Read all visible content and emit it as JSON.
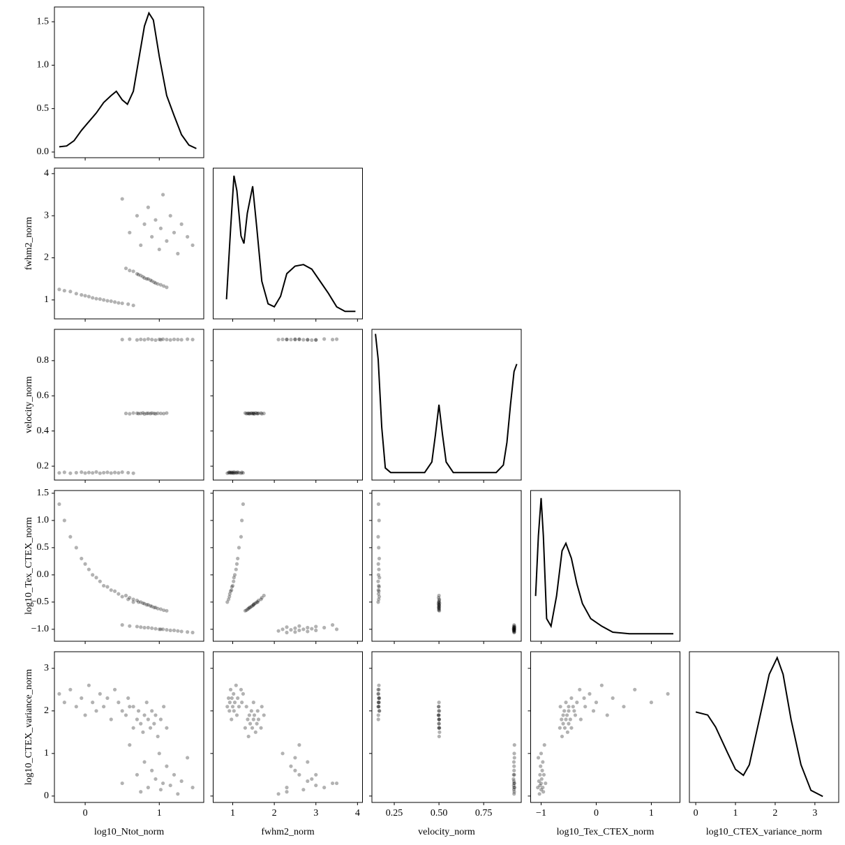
{
  "chart_data": {
    "type": "corner",
    "color": "#000000",
    "variables": [
      {
        "name": "log10_Ntot_norm",
        "xlim": [
          -0.415,
          1.6
        ],
        "xticks": [
          0,
          1
        ],
        "values": [
          -0.35,
          -0.28,
          -0.2,
          -0.12,
          -0.05,
          0.0,
          0.05,
          0.1,
          0.15,
          0.2,
          0.25,
          0.3,
          0.35,
          0.4,
          0.45,
          0.5,
          0.58,
          0.65,
          0.55,
          0.6,
          0.65,
          0.7,
          0.72,
          0.75,
          0.78,
          0.8,
          0.83,
          0.85,
          0.88,
          0.9,
          0.93,
          0.95,
          0.98,
          1.02,
          1.06,
          1.1,
          0.5,
          0.6,
          0.7,
          0.75,
          0.8,
          0.85,
          0.9,
          0.95,
          1.0,
          1.02,
          1.05,
          1.1,
          1.15,
          1.2,
          1.25,
          1.3,
          1.38,
          1.45
        ],
        "kde": {
          "ylim": [
            -0.065,
            1.67
          ],
          "yticks": [
            {
              "value": 0,
              "label": "0.0"
            },
            0.5,
            {
              "value": 1,
              "label": "1.0"
            },
            1.5
          ],
          "x": [
            -0.35,
            -0.25,
            -0.15,
            -0.05,
            0.05,
            0.15,
            0.25,
            0.35,
            0.42,
            0.5,
            0.57,
            0.65,
            0.72,
            0.8,
            0.86,
            0.92,
            1.0,
            1.1,
            1.2,
            1.3,
            1.4,
            1.5
          ],
          "y": [
            0.06,
            0.07,
            0.13,
            0.25,
            0.35,
            0.45,
            0.57,
            0.65,
            0.7,
            0.6,
            0.55,
            0.7,
            1.05,
            1.45,
            1.6,
            1.52,
            1.1,
            0.65,
            0.42,
            0.2,
            0.08,
            0.04
          ]
        }
      },
      {
        "name": "fwhm2_norm",
        "xlim": [
          0.53,
          4.12
        ],
        "ylim": [
          0.55,
          4.13
        ],
        "xticks": [
          1,
          2,
          3,
          4
        ],
        "yticks": [
          1,
          2,
          3,
          4
        ],
        "values": [
          1.25,
          1.22,
          1.2,
          1.15,
          1.12,
          1.1,
          1.08,
          1.05,
          1.03,
          1.02,
          1.0,
          0.98,
          0.97,
          0.95,
          0.93,
          0.92,
          0.9,
          0.87,
          1.75,
          1.7,
          1.68,
          1.62,
          1.6,
          1.58,
          1.55,
          1.52,
          1.5,
          1.5,
          1.47,
          1.45,
          1.42,
          1.4,
          1.38,
          1.36,
          1.33,
          1.3,
          3.4,
          2.6,
          3.0,
          2.3,
          2.8,
          3.2,
          2.5,
          2.9,
          2.2,
          2.7,
          3.5,
          2.4,
          3.0,
          2.6,
          2.1,
          2.8,
          2.5,
          2.3
        ],
        "kde": {
          "ylim": [
            0,
            1
          ],
          "x": [
            0.85,
            0.95,
            1.03,
            1.1,
            1.2,
            1.27,
            1.35,
            1.48,
            1.58,
            1.7,
            1.85,
            2.0,
            2.15,
            2.3,
            2.5,
            2.7,
            2.9,
            3.1,
            3.3,
            3.5,
            3.7,
            3.95
          ],
          "y": [
            0.13,
            0.6,
            0.95,
            0.85,
            0.55,
            0.5,
            0.7,
            0.88,
            0.6,
            0.25,
            0.1,
            0.08,
            0.15,
            0.3,
            0.35,
            0.36,
            0.33,
            0.25,
            0.17,
            0.08,
            0.05,
            0.05
          ]
        }
      },
      {
        "name": "velocity_norm",
        "xlim": [
          0.125,
          0.96
        ],
        "ylim": [
          0.121,
          0.978
        ],
        "xticks": [
          0.25,
          {
            "value": 0.5,
            "label": "0.50"
          },
          0.75
        ],
        "yticks": [
          0.2,
          0.4,
          0.6,
          0.8
        ],
        "values": [
          0.162,
          0.165,
          0.16,
          0.163,
          0.166,
          0.161,
          0.164,
          0.162,
          0.167,
          0.16,
          0.163,
          0.165,
          0.161,
          0.164,
          0.162,
          0.166,
          0.163,
          0.16,
          0.5,
          0.498,
          0.502,
          0.501,
          0.499,
          0.5,
          0.503,
          0.497,
          0.5,
          0.501,
          0.499,
          0.502,
          0.5,
          0.498,
          0.501,
          0.5,
          0.499,
          0.502,
          0.92,
          0.922,
          0.918,
          0.921,
          0.919,
          0.923,
          0.92,
          0.917,
          0.921,
          0.919,
          0.922,
          0.92,
          0.918,
          0.921,
          0.92,
          0.919,
          0.922,
          0.92
        ],
        "kde": {
          "ylim": [
            0,
            1
          ],
          "x": [
            0.145,
            0.16,
            0.18,
            0.2,
            0.23,
            0.3,
            0.42,
            0.46,
            0.48,
            0.5,
            0.52,
            0.54,
            0.58,
            0.7,
            0.82,
            0.86,
            0.88,
            0.9,
            0.92,
            0.935
          ],
          "y": [
            0.97,
            0.8,
            0.35,
            0.08,
            0.05,
            0.05,
            0.05,
            0.12,
            0.3,
            0.5,
            0.3,
            0.12,
            0.05,
            0.05,
            0.05,
            0.1,
            0.25,
            0.5,
            0.72,
            0.77
          ]
        }
      },
      {
        "name": "log10_Tex_CTEX_norm",
        "xlim": [
          -1.19,
          1.52
        ],
        "ylim": [
          -1.22,
          1.55
        ],
        "xticks": [
          {
            "value": -1,
            "label": "−1"
          },
          0,
          1
        ],
        "yticks": [
          {
            "value": -1,
            "label": "−1.0"
          },
          {
            "value": -0.5,
            "label": "−0.5"
          },
          {
            "value": 0,
            "label": "0.0"
          },
          0.5,
          {
            "value": 1,
            "label": "1.0"
          },
          1.5
        ],
        "values": [
          1.3,
          1.0,
          0.7,
          0.5,
          0.3,
          0.2,
          0.1,
          0.0,
          -0.05,
          -0.12,
          -0.2,
          -0.22,
          -0.28,
          -0.3,
          -0.35,
          -0.4,
          -0.45,
          -0.5,
          -0.38,
          -0.42,
          -0.45,
          -0.47,
          -0.5,
          -0.5,
          -0.52,
          -0.53,
          -0.55,
          -0.55,
          -0.57,
          -0.58,
          -0.6,
          -0.6,
          -0.62,
          -0.63,
          -0.65,
          -0.66,
          -0.92,
          -0.94,
          -0.95,
          -0.96,
          -0.97,
          -0.97,
          -0.98,
          -0.99,
          -1.0,
          -1.0,
          -1.0,
          -1.01,
          -1.02,
          -1.02,
          -1.03,
          -1.04,
          -1.05,
          -1.06
        ],
        "kde": {
          "ylim": [
            0,
            1
          ],
          "x": [
            -1.1,
            -1.05,
            -1.0,
            -0.96,
            -0.9,
            -0.82,
            -0.72,
            -0.62,
            -0.55,
            -0.45,
            -0.35,
            -0.25,
            -0.1,
            0.1,
            0.3,
            0.6,
            1.0,
            1.4
          ],
          "y": [
            0.3,
            0.7,
            0.95,
            0.7,
            0.15,
            0.1,
            0.3,
            0.6,
            0.65,
            0.55,
            0.38,
            0.25,
            0.15,
            0.1,
            0.06,
            0.05,
            0.05,
            0.05
          ]
        }
      },
      {
        "name": "log10_CTEX_variance_norm",
        "xlim": [
          -0.16,
          3.6
        ],
        "ylim": [
          -0.15,
          3.39
        ],
        "xticks": [
          0,
          1,
          2,
          3
        ],
        "yticks": [
          0,
          1,
          2,
          3
        ],
        "values": [
          2.4,
          2.2,
          2.5,
          2.1,
          2.3,
          1.9,
          2.6,
          2.2,
          2.0,
          2.4,
          2.1,
          2.3,
          1.8,
          2.5,
          2.2,
          2.0,
          2.3,
          2.1,
          1.9,
          2.1,
          1.6,
          1.8,
          2.0,
          1.7,
          1.5,
          1.9,
          2.2,
          1.8,
          1.6,
          2.0,
          1.7,
          1.9,
          1.4,
          1.8,
          2.1,
          1.6,
          0.3,
          1.2,
          0.5,
          0.1,
          0.8,
          0.2,
          0.6,
          0.4,
          1.0,
          0.15,
          0.3,
          0.7,
          0.25,
          0.5,
          0.05,
          0.35,
          0.9,
          0.2
        ],
        "kde": {
          "ylim": [
            0,
            1
          ],
          "x": [
            0,
            0.3,
            0.5,
            0.8,
            1.0,
            1.2,
            1.35,
            1.6,
            1.85,
            2.05,
            2.2,
            2.4,
            2.65,
            2.9,
            3.2
          ],
          "y": [
            0.6,
            0.58,
            0.5,
            0.33,
            0.22,
            0.18,
            0.25,
            0.55,
            0.85,
            0.96,
            0.85,
            0.55,
            0.25,
            0.08,
            0.04
          ]
        }
      }
    ]
  }
}
